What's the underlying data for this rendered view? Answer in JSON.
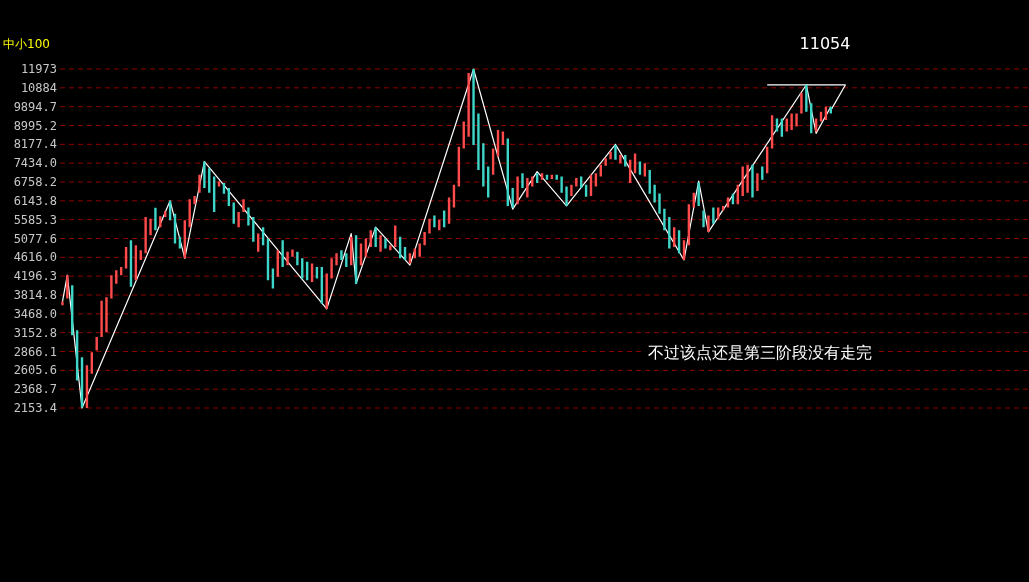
{
  "chart_data": {
    "type": "candlestick",
    "title": "中小100",
    "annotations": [
      "11054",
      "不过该点还是第三阶段没有走完"
    ],
    "categories": [
      null,
      null,
      null,
      null,
      null,
      null,
      null,
      null,
      null,
      null,
      null,
      null,
      null,
      null,
      null,
      null,
      null,
      null,
      null,
      null,
      null,
      null,
      null,
      null,
      null,
      null,
      null,
      null,
      null,
      null,
      null,
      null,
      null,
      null,
      null,
      null,
      null,
      null,
      null,
      null,
      null,
      null,
      null,
      null,
      null,
      null,
      null,
      null,
      null,
      null,
      null,
      null,
      null,
      null,
      null,
      null,
      null,
      null,
      null,
      null,
      null,
      null,
      null,
      null,
      null,
      null,
      null,
      null,
      null,
      null,
      null,
      null,
      null,
      null,
      null,
      null,
      null,
      null,
      null,
      null,
      null,
      null,
      null,
      null,
      null,
      null,
      null,
      null,
      null,
      null,
      null,
      null,
      null,
      null,
      null,
      null,
      null,
      null,
      null,
      null,
      null,
      null,
      null,
      null,
      null,
      null,
      null,
      null,
      null,
      null,
      null,
      null,
      null,
      null,
      null,
      null,
      null,
      null,
      null,
      null,
      null,
      null,
      null,
      null,
      null,
      null,
      null,
      null,
      null,
      null,
      null,
      null,
      null,
      null,
      null,
      null,
      null,
      null,
      null,
      null,
      null,
      null,
      null,
      null,
      null,
      null,
      null,
      null,
      null,
      null,
      null,
      null,
      null,
      null,
      null,
      null,
      null,
      null,
      null,
      null,
      null,
      null,
      null,
      null,
      null,
      null,
      null,
      null,
      null,
      null,
      null,
      null,
      null,
      null,
      null,
      null,
      null,
      null,
      null,
      null,
      null,
      null,
      null,
      null,
      null,
      null,
      null,
      null,
      null,
      null,
      null,
      null,
      null,
      null,
      null,
      null,
      null,
      null
    ],
    "ohlc": [
      [
        3620,
        3690,
        3620,
        3690
      ],
      [
        3750,
        4220,
        3750,
        4220
      ],
      [
        4008,
        4008,
        3110,
        3110
      ],
      [
        3190,
        3190,
        2474,
        2474
      ],
      [
        2784,
        2784,
        2160,
        2160
      ],
      [
        2153.4,
        2672,
        2153.4,
        2672
      ],
      [
        2562,
        2856,
        2562,
        2856
      ],
      [
        2881,
        3084,
        2881,
        3084
      ],
      [
        3084,
        3705,
        3084,
        3705
      ],
      [
        3164,
        3770,
        3164,
        3770
      ],
      [
        3750,
        4218,
        3750,
        4218
      ],
      [
        4040,
        4324,
        4040,
        4324
      ],
      [
        4218,
        4395,
        4218,
        4395
      ],
      [
        4360,
        4866,
        4360,
        4866
      ],
      [
        5035,
        5035,
        3976,
        3976
      ],
      [
        4111,
        4905,
        4111,
        4905
      ],
      [
        4554,
        4787,
        4554,
        4787
      ],
      [
        4710,
        5661,
        4710,
        5661
      ],
      [
        5164,
        5613,
        5164,
        5613
      ],
      [
        5936,
        5936,
        5292,
        5292
      ],
      [
        5378,
        5680,
        5378,
        5680
      ],
      [
        5661,
        5832,
        5661,
        5832
      ],
      [
        6144,
        6144,
        5570,
        5570
      ],
      [
        5755,
        5755,
        4949,
        4949
      ],
      [
        5120,
        5120,
        4826,
        4826
      ],
      [
        4593,
        5566,
        4593,
        5566
      ],
      [
        5378,
        6196,
        5378,
        6196
      ],
      [
        6040,
        6298,
        6040,
        6298
      ],
      [
        6403,
        7009,
        6403,
        7009
      ],
      [
        7497,
        7497,
        6553,
        6553
      ],
      [
        7245,
        7245,
        6403,
        6403
      ],
      [
        6952,
        6952,
        5803,
        5803
      ],
      [
        6610,
        6781,
        6610,
        6781
      ],
      [
        6724,
        6724,
        6365,
        6365
      ],
      [
        6553,
        6553,
        5988,
        5988
      ],
      [
        6092,
        6092,
        5472,
        5472
      ],
      [
        5378,
        5803,
        5378,
        5803
      ],
      [
        5803,
        6196,
        5803,
        6196
      ],
      [
        5940,
        5940,
        5424,
        5424
      ],
      [
        5661,
        5661,
        4992,
        4992
      ],
      [
        4749,
        5206,
        4749,
        5206
      ],
      [
        5378,
        5378,
        4905,
        4905
      ],
      [
        5078,
        5078,
        4111,
        4111
      ],
      [
        4360,
        4360,
        3944,
        3944
      ],
      [
        4182,
        4787,
        4182,
        4787
      ],
      [
        5035,
        5035,
        4395,
        4395
      ],
      [
        4437,
        4749,
        4437,
        4749
      ],
      [
        4632,
        4803,
        4632,
        4803
      ],
      [
        4749,
        4749,
        4437,
        4437
      ],
      [
        4593,
        4593,
        4147,
        4147
      ],
      [
        4515,
        4515,
        4111,
        4111
      ],
      [
        4076,
        4476,
        4076,
        4476
      ],
      [
        4395,
        4395,
        4147,
        4147
      ],
      [
        4395,
        4395,
        3654,
        3654
      ],
      [
        3556,
        4253,
        3556,
        4253
      ],
      [
        4147,
        4593,
        4147,
        4593
      ],
      [
        4437,
        4710,
        4437,
        4710
      ],
      [
        4787,
        4787,
        4554,
        4554
      ],
      [
        4710,
        4710,
        4395,
        4395
      ],
      [
        4437,
        5120,
        4437,
        5120
      ],
      [
        5164,
        5164,
        4040,
        4040
      ],
      [
        4437,
        4949,
        4437,
        4949
      ],
      [
        4632,
        5078,
        4632,
        5078
      ],
      [
        4866,
        5292,
        4866,
        5292
      ],
      [
        5378,
        5378,
        4866,
        4866
      ],
      [
        4749,
        5164,
        4749,
        5164
      ],
      [
        5078,
        5078,
        4826,
        4826
      ],
      [
        4787,
        4905,
        4787,
        4905
      ],
      [
        4866,
        5421,
        4866,
        5421
      ],
      [
        5120,
        5120,
        4593,
        4593
      ],
      [
        4866,
        4866,
        4554,
        4554
      ],
      [
        4476,
        4710,
        4476,
        4710
      ],
      [
        4593,
        4826,
        4593,
        4826
      ],
      [
        4632,
        4949,
        4632,
        4949
      ],
      [
        4905,
        5249,
        4905,
        5249
      ],
      [
        5206,
        5613,
        5206,
        5613
      ],
      [
        5708,
        5708,
        5378,
        5378
      ],
      [
        5292,
        5585,
        5292,
        5585
      ],
      [
        5850,
        5850,
        5378,
        5378
      ],
      [
        5472,
        6248,
        5472,
        6248
      ],
      [
        5940,
        6667,
        5940,
        6667
      ],
      [
        6610,
        8080,
        6610,
        8080
      ],
      [
        8011,
        9178,
        8011,
        9178
      ],
      [
        8494,
        11730,
        8494,
        11730
      ],
      [
        11973,
        11973,
        8150,
        8150
      ],
      [
        9560,
        9560,
        7183,
        7183
      ],
      [
        8219,
        8219,
        6610,
        6610
      ],
      [
        7308,
        7308,
        6248,
        6248
      ],
      [
        7009,
        8011,
        7009,
        8011
      ],
      [
        7685,
        8798,
        7685,
        8798
      ],
      [
        8150,
        8723,
        8150,
        8723
      ],
      [
        8426,
        8426,
        5988,
        5988
      ],
      [
        6553,
        6553,
        5940,
        5940
      ],
      [
        6040,
        6952,
        6040,
        6952
      ],
      [
        7066,
        7066,
        6553,
        6553
      ],
      [
        6248,
        6895,
        6248,
        6895
      ],
      [
        6610,
        6952,
        6610,
        6952
      ],
      [
        7066,
        7066,
        6724,
        6724
      ],
      [
        6838,
        7066,
        6838,
        7066
      ],
      [
        7009,
        7009,
        6838,
        6838
      ],
      [
        6861,
        7009,
        6861,
        7009
      ],
      [
        7009,
        7009,
        6838,
        6838
      ],
      [
        6952,
        6952,
        6403,
        6403
      ],
      [
        6610,
        6610,
        5988,
        5988
      ],
      [
        6298,
        6667,
        6298,
        6667
      ],
      [
        6610,
        6895,
        6610,
        6895
      ],
      [
        6952,
        6952,
        6553,
        6553
      ],
      [
        6667,
        6667,
        6270,
        6270
      ],
      [
        6298,
        7009,
        6298,
        7009
      ],
      [
        6610,
        7066,
        6610,
        7066
      ],
      [
        6952,
        7371,
        6952,
        7371
      ],
      [
        7334,
        7623,
        7334,
        7623
      ],
      [
        7585,
        7872,
        7585,
        7872
      ],
      [
        8150,
        8150,
        7560,
        7560
      ],
      [
        7434,
        7748,
        7434,
        7748
      ],
      [
        7748,
        7748,
        7308,
        7308
      ],
      [
        6724,
        7560,
        6724,
        7560
      ],
      [
        7066,
        7810,
        7066,
        7810
      ],
      [
        7497,
        7497,
        7009,
        7009
      ],
      [
        6952,
        7434,
        6952,
        7434
      ],
      [
        7183,
        7183,
        6365,
        6365
      ],
      [
        6667,
        6667,
        6092,
        6092
      ],
      [
        6376,
        6376,
        5755,
        5755
      ],
      [
        5900,
        5900,
        5292,
        5292
      ],
      [
        5661,
        5661,
        4826,
        4826
      ],
      [
        4866,
        5378,
        4866,
        5378
      ],
      [
        5292,
        5292,
        4710,
        4710
      ],
      [
        4554,
        5035,
        4554,
        5035
      ],
      [
        4905,
        6040,
        4905,
        6040
      ],
      [
        5940,
        6403,
        5940,
        6403
      ],
      [
        6747,
        6747,
        5988,
        5988
      ],
      [
        5850,
        5850,
        5378,
        5378
      ],
      [
        5249,
        5708,
        5249,
        5708
      ],
      [
        5940,
        5940,
        5472,
        5472
      ],
      [
        5613,
        5940,
        5613,
        5940
      ],
      [
        5850,
        5988,
        5850,
        5988
      ],
      [
        5940,
        6248,
        5940,
        6248
      ],
      [
        6365,
        6365,
        6040,
        6040
      ],
      [
        6040,
        6667,
        6040,
        6667
      ],
      [
        6298,
        7308,
        6298,
        7308
      ],
      [
        6403,
        7371,
        6403,
        7371
      ],
      [
        7371,
        7371,
        6248,
        6248
      ],
      [
        6459,
        7066,
        6459,
        7066
      ],
      [
        7308,
        7308,
        6838,
        6838
      ],
      [
        7066,
        8080,
        7066,
        8080
      ],
      [
        8011,
        9480,
        8011,
        9480
      ],
      [
        9320,
        9320,
        8722,
        8722
      ],
      [
        9320,
        9320,
        8494,
        8494
      ],
      [
        8722,
        9320,
        8722,
        9320
      ],
      [
        8798,
        9560,
        8798,
        9560
      ],
      [
        8950,
        9560,
        8950,
        9560
      ],
      [
        9560,
        10608,
        9560,
        10608
      ],
      [
        11054,
        11054,
        9643,
        9643
      ],
      [
        10064,
        10064,
        8645,
        8645
      ],
      [
        8722,
        9320,
        8722,
        9320
      ],
      [
        9178,
        9643,
        9178,
        9643
      ],
      [
        9252,
        9895,
        9252,
        9895
      ],
      [
        9895,
        9895,
        9560,
        9560
      ],
      null,
      null,
      null,
      null,
      null,
      null,
      null,
      null,
      null,
      null,
      null,
      null,
      null,
      null,
      null,
      null,
      null,
      null,
      null,
      null,
      null,
      null,
      null,
      null,
      null,
      null,
      null,
      null,
      null,
      null,
      null,
      null,
      null,
      null,
      null,
      null,
      null,
      null,
      null,
      null
    ],
    "colors": [
      "#ff4b4b",
      "#ff4b4b",
      "#3ed6c8",
      "#3ed6c8",
      "#3ed6c8",
      "#ff4b4b",
      "#ff4b4b",
      "#ff4b4b",
      "#ff4b4b",
      "#ff4b4b",
      "#ff4b4b",
      "#ff4b4b",
      "#ff4b4b",
      "#ff4b4b",
      "#3ed6c8",
      "#ff4b4b",
      "#ff4b4b",
      "#ff4b4b",
      "#ff4b4b",
      "#3ed6c8",
      "#ff4b4b",
      "#ff4b4b",
      "#3ed6c8",
      "#3ed6c8",
      "#3ed6c8",
      "#ff4b4b",
      "#ff4b4b",
      "#ff4b4b",
      "#ff4b4b",
      "#3ed6c8",
      "#3ed6c8",
      "#3ed6c8",
      "#ff4b4b",
      "#3ed6c8",
      "#3ed6c8",
      "#3ed6c8",
      "#ff4b4b",
      "#ff4b4b",
      "#3ed6c8",
      "#3ed6c8",
      "#ff4b4b",
      "#3ed6c8",
      "#3ed6c8",
      "#3ed6c8",
      "#ff4b4b",
      "#3ed6c8",
      "#ff4b4b",
      "#ff4b4b",
      "#3ed6c8",
      "#3ed6c8",
      "#3ed6c8",
      "#ff4b4b",
      "#3ed6c8",
      "#3ed6c8",
      "#ff4b4b",
      "#ff4b4b",
      "#ff4b4b",
      "#3ed6c8",
      "#3ed6c8",
      "#ff4b4b",
      "#3ed6c8",
      "#ff4b4b",
      "#ff4b4b",
      "#ff4b4b",
      "#3ed6c8",
      "#ff4b4b",
      "#3ed6c8",
      "#ff4b4b",
      "#ff4b4b",
      "#3ed6c8",
      "#3ed6c8",
      "#ff4b4b",
      "#ff4b4b",
      "#ff4b4b",
      "#ff4b4b",
      "#ff4b4b",
      "#3ed6c8",
      "#ff4b4b",
      "#3ed6c8",
      "#ff4b4b",
      "#ff4b4b",
      "#ff4b4b",
      "#ff4b4b",
      "#ff4b4b",
      "#3ed6c8",
      "#3ed6c8",
      "#3ed6c8",
      "#3ed6c8",
      "#ff4b4b",
      "#ff4b4b",
      "#ff4b4b",
      "#3ed6c8",
      "#3ed6c8",
      "#ff4b4b",
      "#3ed6c8",
      "#ff4b4b",
      "#ff4b4b",
      "#3ed6c8",
      "#ff4b4b",
      "#3ed6c8",
      "#ff4b4b",
      "#3ed6c8",
      "#3ed6c8",
      "#3ed6c8",
      "#ff4b4b",
      "#ff4b4b",
      "#3ed6c8",
      "#3ed6c8",
      "#ff4b4b",
      "#ff4b4b",
      "#ff4b4b",
      "#ff4b4b",
      "#ff4b4b",
      "#3ed6c8",
      "#ff4b4b",
      "#3ed6c8",
      "#ff4b4b",
      "#ff4b4b",
      "#3ed6c8",
      "#ff4b4b",
      "#3ed6c8",
      "#3ed6c8",
      "#3ed6c8",
      "#3ed6c8",
      "#3ed6c8",
      "#ff4b4b",
      "#3ed6c8",
      "#ff4b4b",
      "#ff4b4b",
      "#ff4b4b",
      "#3ed6c8",
      "#3ed6c8",
      "#ff4b4b",
      "#3ed6c8",
      "#ff4b4b",
      "#ff4b4b",
      "#ff4b4b",
      "#3ed6c8",
      "#ff4b4b",
      "#ff4b4b",
      "#ff4b4b",
      "#3ed6c8",
      "#ff4b4b",
      "#3ed6c8",
      "#ff4b4b",
      "#ff4b4b",
      "#3ed6c8",
      "#3ed6c8",
      "#ff4b4b",
      "#ff4b4b",
      "#ff4b4b",
      "#ff4b4b",
      "#3ed6c8",
      "#3ed6c8",
      "#ff4b4b",
      "#ff4b4b",
      "#ff4b4b",
      "#3ed6c8",
      null,
      null,
      null,
      null,
      null,
      null,
      null,
      null,
      null,
      null,
      null,
      null,
      null,
      null,
      null,
      null,
      null,
      null,
      null,
      null,
      null,
      null,
      null,
      null,
      null,
      null,
      null,
      null,
      null,
      null,
      null,
      null,
      null,
      null,
      null,
      null,
      null,
      null,
      null,
      null
    ],
    "series": [
      {
        "type": "line",
        "color": "#ffffff",
        "values": [
          3690,
          4220,
          null,
          null,
          2153.4,
          null,
          null,
          null,
          null,
          null,
          null,
          null,
          null,
          null,
          null,
          null,
          null,
          null,
          null,
          null,
          null,
          null,
          6144,
          null,
          null,
          4593,
          null,
          null,
          null,
          7497,
          null,
          null,
          null,
          null,
          null,
          null,
          null,
          null,
          null,
          null,
          null,
          null,
          null,
          null,
          null,
          null,
          null,
          null,
          null,
          null,
          null,
          null,
          null,
          null,
          3556,
          null,
          null,
          null,
          null,
          5206,
          4040,
          null,
          null,
          null,
          5378,
          null,
          null,
          null,
          null,
          null,
          null,
          4437,
          null,
          null,
          null,
          null,
          null,
          null,
          null,
          null,
          null,
          null,
          null,
          null,
          11973,
          null,
          null,
          null,
          null,
          null,
          null,
          null,
          5890,
          null,
          null,
          null,
          null,
          7120,
          null,
          null,
          null,
          null,
          null,
          5988,
          null,
          null,
          null,
          null,
          null,
          null,
          null,
          null,
          null,
          8177.4,
          null,
          null,
          null,
          null,
          null,
          null,
          null,
          null,
          null,
          null,
          null,
          null,
          null,
          4554,
          null,
          null,
          6790,
          null,
          5249,
          null,
          null,
          null,
          null,
          null,
          null,
          null,
          null,
          null,
          null,
          null,
          null,
          null,
          null,
          null,
          null,
          null,
          null,
          null,
          11054,
          null,
          8645,
          null,
          null,
          9895,
          null,
          null,
          null,
          null,
          null,
          null,
          null,
          null,
          null,
          null,
          null,
          null,
          null,
          null,
          null,
          null,
          null,
          null,
          null,
          null,
          null,
          null,
          null,
          null,
          null,
          null,
          null,
          null,
          null,
          null,
          null,
          null,
          null,
          null,
          null,
          null,
          null,
          null,
          null,
          null
        ]
      },
      {
        "type": "line",
        "color": "#ffffff",
        "values": [
          null,
          null,
          null,
          null,
          null,
          null,
          null,
          null,
          null,
          null,
          null,
          null,
          null,
          null,
          null,
          null,
          null,
          null,
          null,
          null,
          null,
          null,
          null,
          null,
          null,
          null,
          null,
          null,
          null,
          null,
          null,
          null,
          null,
          null,
          null,
          null,
          null,
          null,
          null,
          null,
          null,
          null,
          null,
          null,
          null,
          null,
          null,
          null,
          null,
          null,
          null,
          null,
          null,
          null,
          null,
          null,
          null,
          null,
          null,
          null,
          null,
          null,
          null,
          null,
          null,
          null,
          null,
          null,
          null,
          null,
          null,
          null,
          null,
          null,
          null,
          null,
          null,
          null,
          null,
          null,
          null,
          null,
          null,
          null,
          null,
          null,
          null,
          null,
          null,
          null,
          null,
          null,
          null,
          null,
          null,
          null,
          null,
          null,
          null,
          null,
          null,
          null,
          null,
          null,
          null,
          null,
          null,
          null,
          null,
          null,
          null,
          null,
          null,
          null,
          null,
          null,
          null,
          null,
          null,
          null,
          null,
          null,
          null,
          null,
          null,
          null,
          null,
          null,
          null,
          null,
          null,
          null,
          null,
          null,
          null,
          null,
          null,
          null,
          null,
          null,
          null,
          null,
          null,
          null,
          11054,
          null,
          null,
          null,
          null,
          null,
          null,
          null,
          null,
          null,
          null,
          null,
          null,
          null,
          null,
          null,
          11054,
          null,
          null,
          null,
          null,
          null,
          null,
          null,
          null,
          null,
          null,
          null,
          null,
          null,
          null,
          null,
          null,
          null,
          null,
          null,
          null,
          null,
          null,
          null,
          null,
          null,
          null,
          null,
          null,
          null,
          null,
          null,
          null,
          null,
          null,
          null,
          null,
          null
        ]
      },
      {
        "type": "line",
        "color": "#ffffff",
        "values": [
          null,
          null,
          null,
          null,
          null,
          null,
          null,
          null,
          null,
          null,
          null,
          null,
          null,
          null,
          null,
          null,
          null,
          null,
          null,
          null,
          null,
          null,
          null,
          null,
          null,
          null,
          null,
          null,
          null,
          null,
          null,
          null,
          null,
          null,
          null,
          null,
          null,
          null,
          null,
          null,
          null,
          null,
          null,
          null,
          null,
          null,
          null,
          null,
          null,
          null,
          null,
          null,
          null,
          null,
          null,
          null,
          null,
          null,
          null,
          null,
          null,
          null,
          null,
          null,
          null,
          null,
          null,
          null,
          null,
          null,
          null,
          null,
          null,
          null,
          null,
          null,
          null,
          null,
          null,
          null,
          null,
          null,
          null,
          null,
          null,
          null,
          null,
          null,
          null,
          null,
          null,
          null,
          null,
          null,
          null,
          null,
          null,
          null,
          null,
          null,
          null,
          null,
          null,
          null,
          null,
          null,
          null,
          null,
          null,
          null,
          null,
          null,
          null,
          null,
          null,
          null,
          null,
          null,
          null,
          null,
          null,
          null,
          null,
          null,
          null,
          null,
          null,
          null,
          null,
          null,
          null,
          null,
          null,
          null,
          null,
          null,
          null,
          null,
          null,
          null,
          null,
          null,
          null,
          null,
          null,
          null,
          null,
          null,
          null,
          null,
          null,
          null,
          null,
          null,
          null,
          null,
          null,
          9712,
          null,
          null,
          11054,
          null,
          null,
          null,
          null,
          null,
          null,
          null,
          null,
          null,
          null,
          null,
          null,
          null,
          null,
          null,
          null,
          null,
          null,
          null,
          null,
          null,
          null,
          null,
          null,
          null,
          null,
          null,
          null,
          null,
          null,
          null,
          null,
          null,
          null,
          null,
          null,
          null
        ]
      }
    ],
    "log": true,
    "ylim": [
      2153.4,
      11973
    ],
    "yticks": [
      2153.4,
      2368.7,
      2605.6,
      2866.1,
      3152.8,
      {
        "value": 3468,
        "label": "3468.0"
      },
      3814.8,
      4196.3,
      {
        "value": 4616,
        "label": "4616.0"
      },
      5077.6,
      5585.3,
      6143.8,
      6758.2,
      {
        "value": 7434,
        "label": "7434.0"
      },
      8177.4,
      8995.2,
      9894.7,
      10884,
      11973
    ],
    "grid": "y"
  }
}
